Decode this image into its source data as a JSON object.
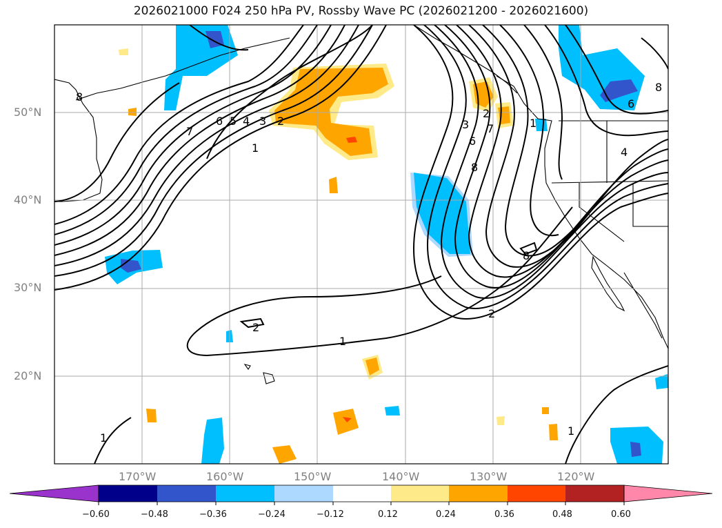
{
  "title": "2026021000 F024 250 hPa PV, Rossby Wave PC (2026021200 - 2026021600)",
  "latitude_labels": [
    "50°N",
    "40°N",
    "30°N",
    "20°N"
  ],
  "longitude_labels": [
    "170°W",
    "160°W",
    "150°W",
    "140°W",
    "130°W",
    "120°W"
  ],
  "contour_labels": [
    "1",
    "2",
    "3",
    "4",
    "5",
    "6",
    "7",
    "8",
    "1",
    "2",
    "3",
    "6",
    "7",
    "8",
    "8",
    "2",
    "1",
    "2",
    "1",
    "1",
    "4",
    "6",
    "8"
  ],
  "colorbar": {
    "ticks": [
      "−0.60",
      "−0.48",
      "−0.36",
      "−0.24",
      "−0.12",
      "0.12",
      "0.24",
      "0.36",
      "0.48",
      "0.60"
    ],
    "colors": [
      "#9933cc",
      "#00008b",
      "#3355cc",
      "#00bfff",
      "#add8ff",
      "#ffffff",
      "#ffea8a",
      "#ffa500",
      "#ff4500",
      "#b22222",
      "#ff88aa"
    ]
  },
  "colors": {
    "land_outline": "#000000",
    "grid": "#aaaaaa",
    "contour": "#000000"
  }
}
